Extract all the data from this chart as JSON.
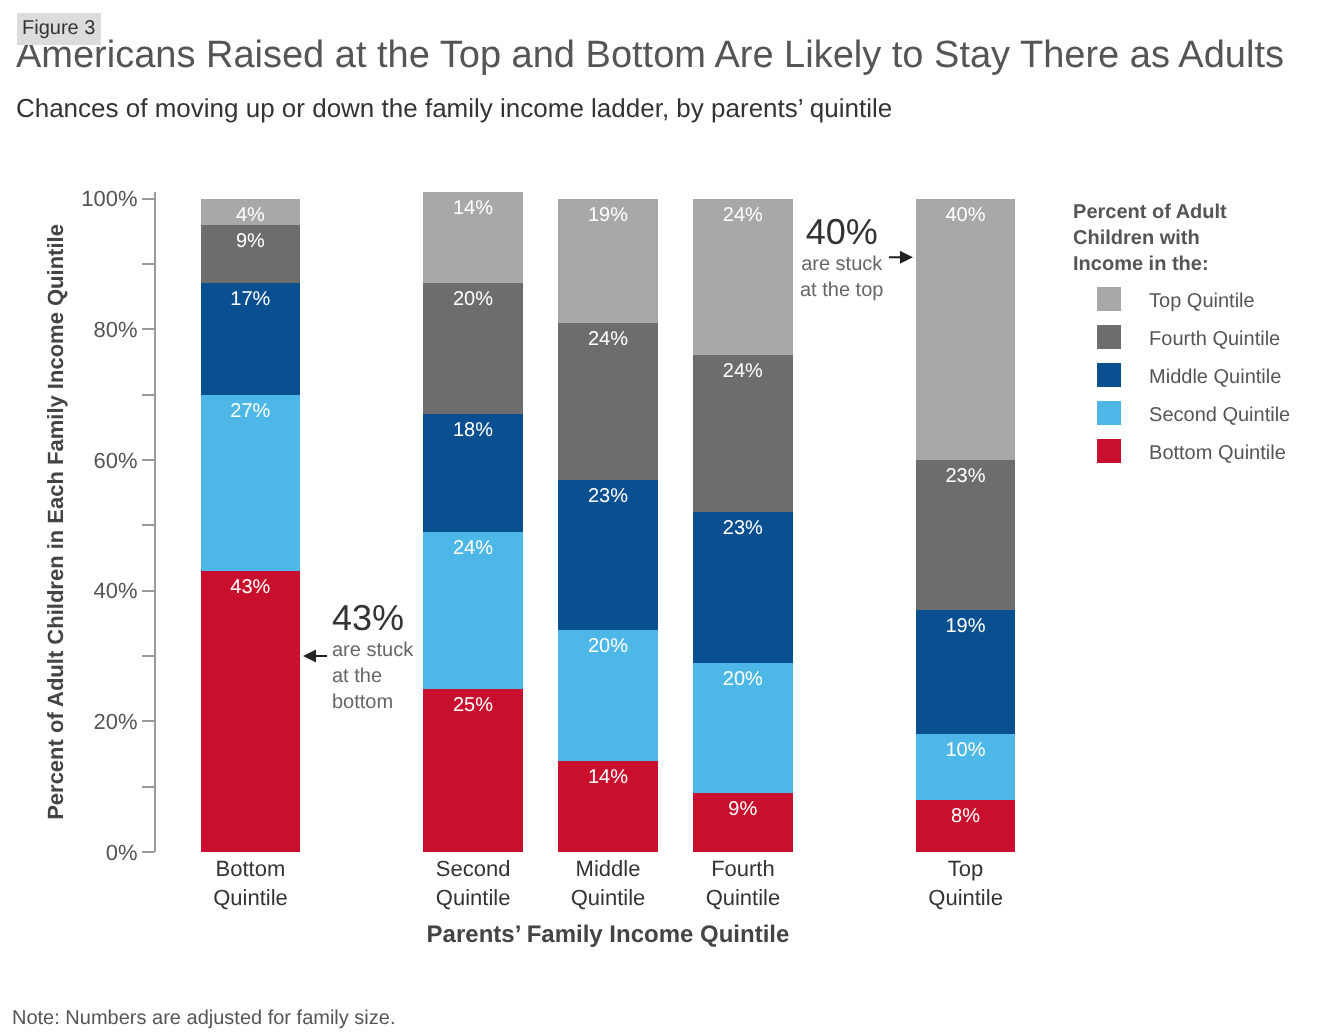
{
  "chart_data": {
    "type": "bar",
    "stacked": true,
    "title": "Americans Raised at the Top and Bottom Are Likely to Stay There as Adults",
    "subtitle": "Chances of moving up or down the family income ladder, by parents’ quintile",
    "xlabel": "Parents’ Family Income Quintile",
    "ylabel": "Percent of Adult Children in Each Family Income Quintile",
    "legend_title": "Percent of Adult Children with Income in the:",
    "categories": [
      "Bottom Quintile",
      "Second Quintile",
      "Middle Quintile",
      "Fourth Quintile",
      "Top Quintile"
    ],
    "series": [
      {
        "name": "Bottom Quintile",
        "color": "#c8102e",
        "values": [
          43,
          25,
          14,
          9,
          8
        ],
        "value_labels": [
          "43%",
          "25%",
          "14%",
          "9%",
          "8%"
        ]
      },
      {
        "name": "Second Quintile",
        "color": "#4db8e8",
        "values": [
          27,
          24,
          20,
          20,
          10
        ],
        "value_labels": [
          "27%",
          "24%",
          "20%",
          "20%",
          "10%"
        ]
      },
      {
        "name": "Middle Quintile",
        "color": "#0a4f8f",
        "values": [
          17,
          18,
          23,
          23,
          19
        ],
        "value_labels": [
          "17%",
          "18%",
          "23%",
          "23%",
          "19%"
        ]
      },
      {
        "name": "Fourth Quintile",
        "color": "#6d6d6d",
        "values": [
          9,
          20,
          24,
          24,
          23
        ],
        "value_labels": [
          "9%",
          "20%",
          "24%",
          "24%",
          "23%"
        ]
      },
      {
        "name": "Top Quintile",
        "color": "#a8a8a8",
        "values": [
          4,
          14,
          19,
          24,
          40
        ],
        "value_labels": [
          "4%",
          "14%",
          "19%",
          "24%",
          "40%"
        ]
      }
    ],
    "ylim": [
      0,
      101
    ],
    "yticks": [
      {
        "value": 0,
        "label": "0%"
      },
      {
        "value": 10,
        "label": null
      },
      {
        "value": 20,
        "label": "20%"
      },
      {
        "value": 30,
        "label": null
      },
      {
        "value": 40,
        "label": "40%"
      },
      {
        "value": 50,
        "label": null
      },
      {
        "value": 60,
        "label": "60%"
      },
      {
        "value": 70,
        "label": null
      },
      {
        "value": 80,
        "label": "80%"
      },
      {
        "value": 90,
        "label": null
      },
      {
        "value": 100,
        "label": "100%"
      }
    ],
    "legend": "top right",
    "annotations": [
      "43%\nare stuck\nat the\nbottom",
      "40%\nare stuck\nat the top",
      "Figure 3",
      "Note: Numbers are adjusted for family size."
    ]
  }
}
